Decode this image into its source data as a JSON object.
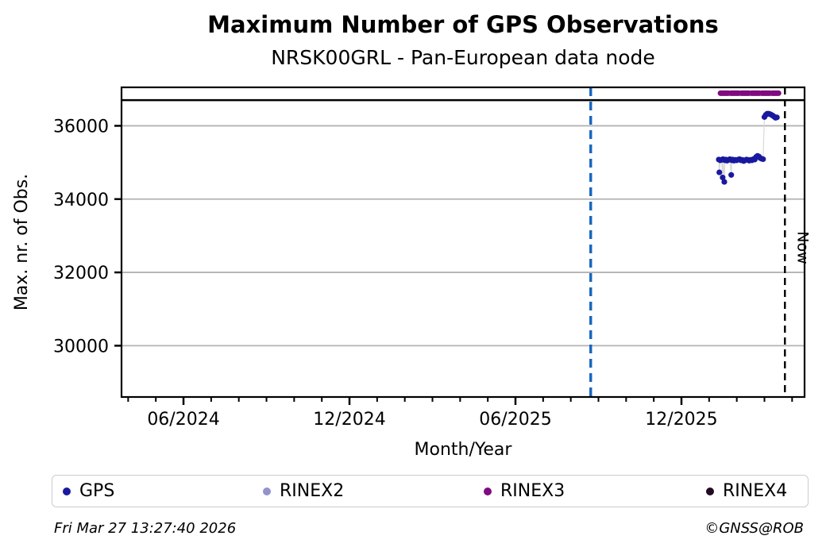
{
  "chart_data": {
    "type": "scatter",
    "title": "Maximum Number of GPS Observations",
    "subtitle": "NRSK00GRL - Pan-European data node",
    "xlabel": "Month/Year",
    "ylabel": "Max. nr. of Obs.",
    "x_unit": "months_since_2024_01_01",
    "xlim": [
      2.76,
      27.45
    ],
    "ylim": [
      28600,
      37050
    ],
    "grid": "horizontal",
    "grid_color": "#b3b3b3",
    "x_major_ticks": [
      {
        "m": 5,
        "label": "06/2024"
      },
      {
        "m": 11,
        "label": "12/2024"
      },
      {
        "m": 17,
        "label": "06/2025"
      },
      {
        "m": 23,
        "label": "12/2025"
      }
    ],
    "x_minor_ticks_range": [
      3,
      27
    ],
    "y_ticks": [
      30000,
      32000,
      34000,
      36000
    ],
    "reference_line": {
      "value": 36700,
      "color": "#000000"
    },
    "event_line": {
      "m": 19.72,
      "color": "#1565c0",
      "style": "dashed"
    },
    "now_line": {
      "m": 26.74,
      "label": "Now",
      "color": "#000000",
      "style": "dashed"
    },
    "series": [
      {
        "name": "GPS",
        "color": "#19199f",
        "marker_radius": 3.6,
        "connector_color": "#d9d9d9",
        "points": [
          [
            24.35,
            35080
          ],
          [
            24.37,
            34730
          ],
          [
            24.4,
            35060
          ],
          [
            24.45,
            35070
          ],
          [
            24.49,
            34590
          ],
          [
            24.5,
            35090
          ],
          [
            24.55,
            34470
          ],
          [
            24.57,
            35060
          ],
          [
            24.6,
            35080
          ],
          [
            24.65,
            35050
          ],
          [
            24.7,
            35070
          ],
          [
            24.75,
            35090
          ],
          [
            24.8,
            34660
          ],
          [
            24.82,
            35060
          ],
          [
            24.85,
            35080
          ],
          [
            24.9,
            35050
          ],
          [
            24.95,
            35070
          ],
          [
            25.0,
            35060
          ],
          [
            25.05,
            35080
          ],
          [
            25.1,
            35090
          ],
          [
            25.15,
            35060
          ],
          [
            25.2,
            35070
          ],
          [
            25.25,
            35040
          ],
          [
            25.3,
            35060
          ],
          [
            25.35,
            35080
          ],
          [
            25.4,
            35070
          ],
          [
            25.45,
            35050
          ],
          [
            25.5,
            35070
          ],
          [
            25.55,
            35060
          ],
          [
            25.6,
            35090
          ],
          [
            25.65,
            35080
          ],
          [
            25.7,
            35150
          ],
          [
            25.75,
            35180
          ],
          [
            25.8,
            35160
          ],
          [
            25.85,
            35120
          ],
          [
            25.9,
            35100
          ],
          [
            25.95,
            35090
          ],
          [
            26.0,
            36240
          ],
          [
            26.05,
            36300
          ],
          [
            26.1,
            36330
          ],
          [
            26.15,
            36330
          ],
          [
            26.2,
            36320
          ],
          [
            26.25,
            36300
          ],
          [
            26.3,
            36280
          ],
          [
            26.35,
            36250
          ],
          [
            26.4,
            36220
          ],
          [
            26.45,
            36230
          ]
        ]
      },
      {
        "name": "RINEX3",
        "color": "#800b80",
        "type": "thick_line",
        "value": 36890,
        "m_start": 24.41,
        "m_end": 26.51,
        "line_width": 7
      },
      {
        "name": "RINEX2",
        "color": "#9292cf",
        "points": []
      },
      {
        "name": "RINEX4",
        "color": "#230c23",
        "points": []
      }
    ],
    "legend": {
      "position": "bottom",
      "entries": [
        {
          "label": "GPS",
          "color": "#19199f"
        },
        {
          "label": "RINEX2",
          "color": "#9292cf"
        },
        {
          "label": "RINEX3",
          "color": "#800b80"
        },
        {
          "label": "RINEX4",
          "color": "#230c23"
        }
      ]
    }
  },
  "footer": {
    "timestamp": "Fri Mar 27 13:27:40 2026",
    "credit": "©GNSS@ROB"
  }
}
